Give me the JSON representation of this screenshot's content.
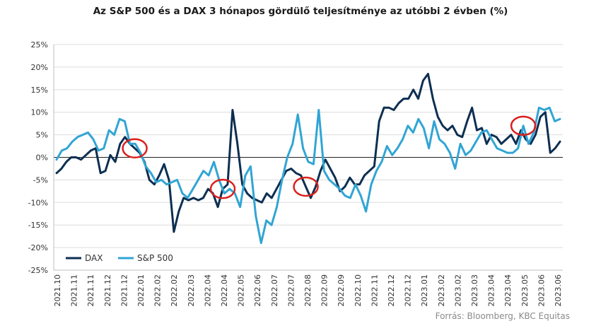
{
  "chart_data": {
    "type": "line",
    "title": "Az S&P 500 és a DAX 3 hónapos gördülő teljesítménye az utóbbi 2 évben (%)",
    "source": "Forrás: Bloomberg, KBC Equitas",
    "y_tick_labels": [
      "25%",
      "20%",
      "15%",
      "10%",
      "5%",
      "0%",
      "-5%",
      "-10%",
      "-15%",
      "-20%",
      "-25%"
    ],
    "ylim": [
      -25,
      25
    ],
    "x_tick_labels": [
      "2021.10",
      "2021.11",
      "2021.11",
      "2021.12",
      "2021.12",
      "2022.01",
      "2022.02",
      "2022.02",
      "2022.03",
      "2022.04",
      "2022.04",
      "2022.05",
      "2022.06",
      "2022.07",
      "2022.07",
      "2022.08",
      "2022.09",
      "2022.09",
      "2022.10",
      "2022.11",
      "2022.12",
      "2022.12",
      "2023.01",
      "2023.02",
      "2023.02",
      "2023.03",
      "2023.04",
      "2023.04",
      "2023.05",
      "2023.06",
      "2023.06"
    ],
    "legend_position": "bottom-left",
    "series": [
      {
        "name": "DAX",
        "color": "#0d2f52",
        "values": [
          -3.5,
          -2.5,
          -1,
          0,
          0,
          -0.5,
          0.5,
          1.5,
          2,
          -3.5,
          -3,
          0.5,
          -1,
          3,
          4.5,
          3,
          2,
          1,
          -1,
          -5,
          -6,
          -4,
          -1.5,
          -5,
          -16.5,
          -12,
          -9,
          -9.5,
          -9,
          -9.5,
          -9,
          -7,
          -8,
          -11,
          -7,
          -6,
          10.5,
          3,
          -6,
          -8,
          -9,
          -9.5,
          -10,
          -8,
          -9,
          -7,
          -5,
          -3,
          -2.5,
          -3.5,
          -4,
          -6.5,
          -9,
          -6.5,
          -3,
          -0.5,
          -2.5,
          -4.5,
          -7.5,
          -6.5,
          -4.5,
          -6,
          -6,
          -4,
          -3,
          -2,
          8,
          11,
          11,
          10.5,
          12,
          13,
          13,
          15,
          13,
          17,
          18.5,
          13,
          9,
          7,
          6,
          7,
          5,
          4.5,
          8,
          11,
          6,
          6.5,
          3,
          5,
          4.5,
          3,
          4,
          5,
          3,
          6,
          4,
          3,
          5,
          9,
          10,
          1,
          2,
          3.5
        ],
        "circles": [
          16,
          34,
          51
        ]
      },
      {
        "name": "S&P 500",
        "color": "#31a5d4",
        "values": [
          -0.5,
          1.5,
          2,
          3.5,
          4.5,
          5,
          5.5,
          4,
          1.5,
          2,
          6,
          5,
          8.5,
          8,
          3,
          3,
          1,
          -2,
          -3.5,
          -5.5,
          -5,
          -6,
          -5.5,
          -5,
          -8,
          -9,
          -7,
          -5,
          -3,
          -4,
          -1,
          -5,
          -8,
          -7,
          -8,
          -11,
          -4,
          -2,
          -13,
          -19,
          -14,
          -15,
          -11,
          -5,
          0,
          3,
          9.5,
          2,
          -1,
          -1.5,
          10.5,
          -3,
          -5,
          -6,
          -7,
          -8.5,
          -9,
          -6,
          -8.5,
          -12,
          -6,
          -3,
          -1,
          2.5,
          0.5,
          2,
          4,
          7,
          5.5,
          8.5,
          6.5,
          2,
          8,
          4,
          3,
          1,
          -2.5,
          3,
          0.5,
          1.5,
          3.5,
          5.5,
          6,
          4,
          2,
          1.5,
          1,
          1,
          2,
          7,
          3,
          5.5,
          11,
          10.5,
          11,
          8,
          8.5
        ],
        "circles": [
          89
        ]
      }
    ]
  }
}
